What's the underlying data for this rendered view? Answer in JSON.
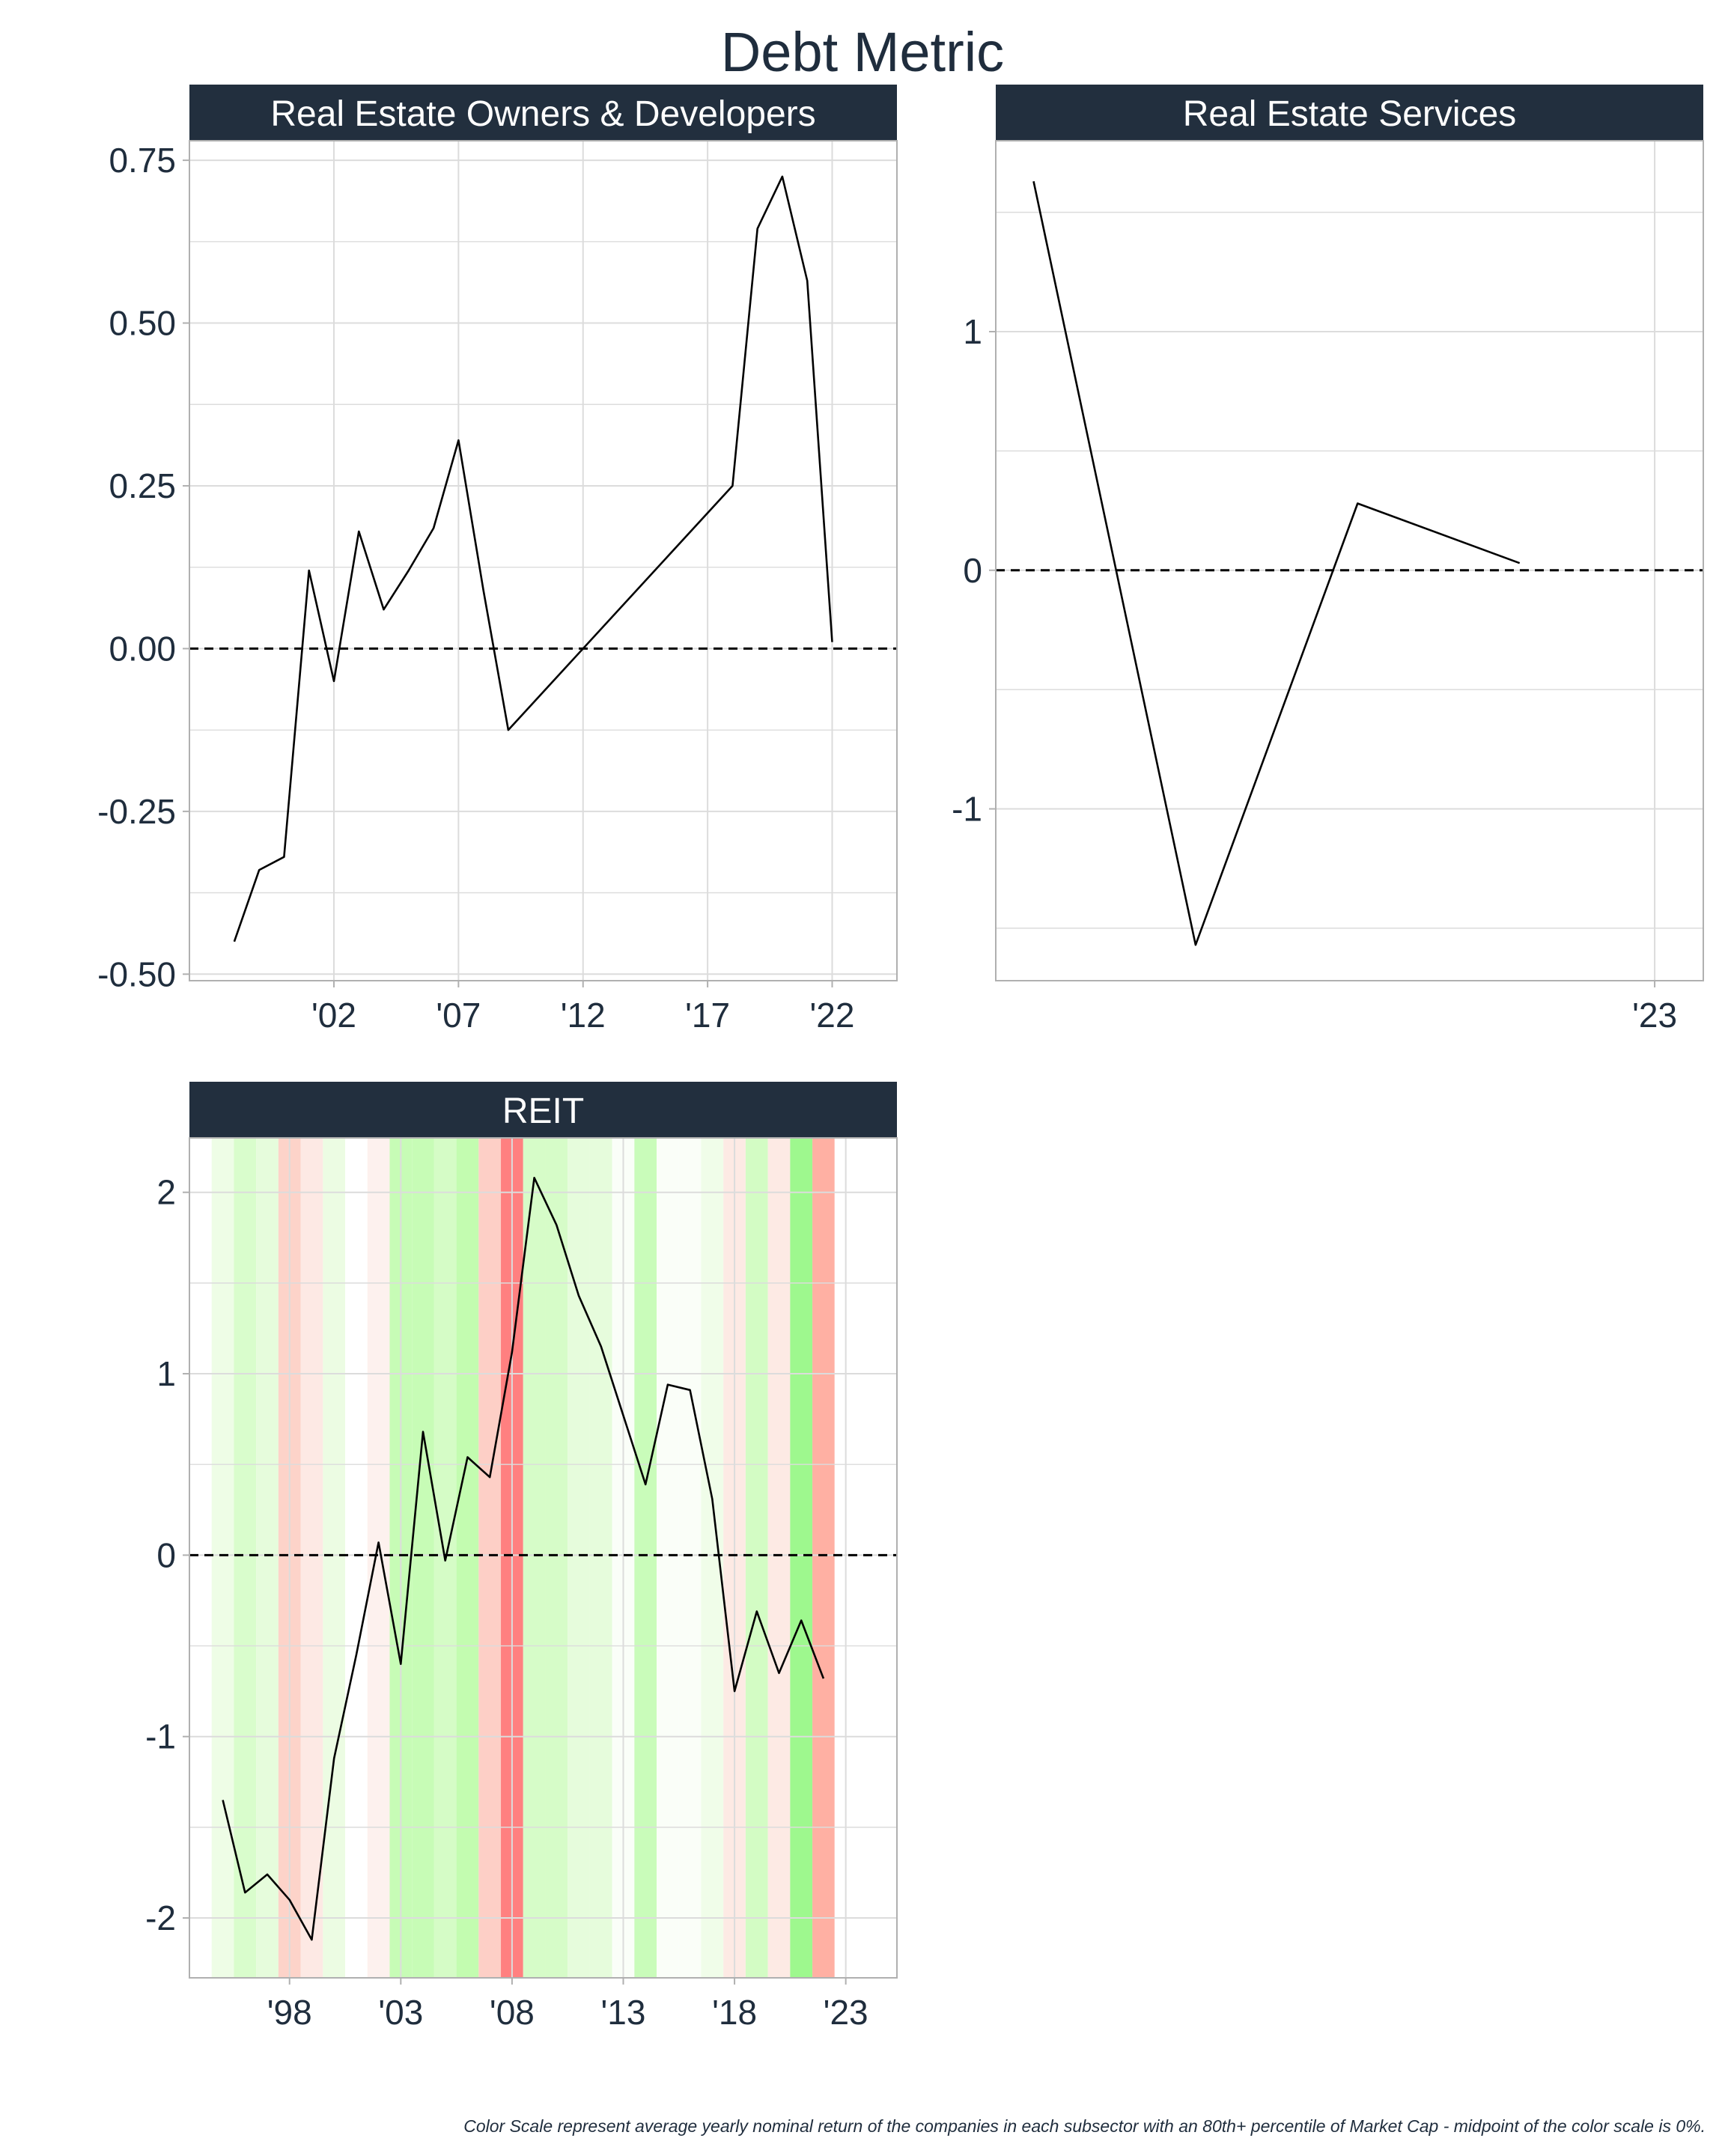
{
  "title": "Debt Metric",
  "caption": "Color Scale represent average yearly nominal return of the companies in each subsector with an 80th+ percentile of Market Cap - midpoint of the color scale is 0%.",
  "colors": {
    "strip": "#222f3e",
    "grid": "#dcdcdc",
    "line": "#000000",
    "zero_line": "#000000",
    "frame": "#b0b0b0"
  },
  "chart_data": [
    {
      "type": "line",
      "title": "Real Estate Owners & Developers",
      "xlim": [
        1996.2,
        2024.6
      ],
      "ylim": [
        -0.51,
        0.78
      ],
      "x_ticks": [
        2002,
        2007,
        2012,
        2017,
        2022
      ],
      "x_tick_labels": [
        "'02",
        "'07",
        "'12",
        "'17",
        "'22"
      ],
      "y_ticks": [
        -0.5,
        -0.25,
        0,
        0.25,
        0.5,
        0.75
      ],
      "y_tick_labels": [
        "-0.50",
        "-0.25",
        "0.00",
        "0.25",
        "0.50",
        "0.75"
      ],
      "reference_line": 0,
      "x": [
        1998,
        1999,
        2000,
        2001,
        2002,
        2003,
        2004,
        2005,
        2006,
        2007,
        2008,
        2009,
        2018,
        2019,
        2020,
        2021,
        2022
      ],
      "values": [
        -0.45,
        -0.34,
        -0.32,
        0.12,
        -0.05,
        0.18,
        0.06,
        0.12,
        0.185,
        0.32,
        0.09,
        -0.125,
        0.25,
        0.645,
        0.725,
        0.565,
        0.01
      ]
    },
    {
      "type": "line",
      "title": "Real Estate Services",
      "xlim": [
        1998.6,
        2024.8
      ],
      "ylim": [
        -1.72,
        1.8
      ],
      "x_ticks": [
        2023
      ],
      "x_tick_labels": [
        "'23"
      ],
      "y_ticks": [
        -1,
        0,
        1
      ],
      "y_tick_labels": [
        "-1",
        "0",
        "1"
      ],
      "reference_line": 0,
      "x": [
        2000,
        2006,
        2012,
        2018
      ],
      "values": [
        1.63,
        -1.57,
        0.28,
        0.03
      ]
    },
    {
      "type": "line",
      "title": "REIT",
      "xlim": [
        1993.5,
        2025.3
      ],
      "ylim": [
        -2.33,
        2.3
      ],
      "x_ticks": [
        1998,
        2003,
        2008,
        2013,
        2018,
        2023
      ],
      "x_tick_labels": [
        "'98",
        "'03",
        "'08",
        "'13",
        "'18",
        "'23"
      ],
      "y_ticks": [
        -2,
        -1,
        0,
        1,
        2
      ],
      "y_tick_labels": [
        "-2",
        "-1",
        "0",
        "1",
        "2"
      ],
      "reference_line": 0,
      "x": [
        1995,
        1996,
        1997,
        1998,
        1999,
        2000,
        2001,
        2002,
        2003,
        2004,
        2005,
        2006,
        2007,
        2008,
        2009,
        2010,
        2011,
        2012,
        2013,
        2014,
        2015,
        2016,
        2017,
        2018,
        2019,
        2020,
        2021,
        2022
      ],
      "values": [
        -1.35,
        -1.86,
        -1.76,
        -1.9,
        -2.12,
        -1.12,
        -0.55,
        0.07,
        -0.6,
        0.68,
        -0.03,
        0.54,
        0.43,
        1.12,
        2.08,
        1.82,
        1.43,
        1.15,
        0.77,
        0.39,
        0.94,
        0.91,
        0.31,
        -0.75,
        -0.31,
        -0.65,
        -0.36,
        -0.68
      ],
      "background_years": [
        1995,
        1996,
        1997,
        1998,
        1999,
        2000,
        2001,
        2002,
        2003,
        2004,
        2005,
        2006,
        2007,
        2008,
        2009,
        2010,
        2011,
        2012,
        2013,
        2014,
        2015,
        2016,
        2017,
        2018,
        2019,
        2020,
        2021,
        2022,
        2023
      ],
      "background_colors": [
        "#eefde6",
        "#d9fdcc",
        "#e6fcdc",
        "#fdd3c9",
        "#fde9e4",
        "#ecfce3",
        "#ffffff",
        "#fdf1ee",
        "#c7fcb6",
        "#c7fcb6",
        "#d5fcc6",
        "#c3fcb0",
        "#fdcfc6",
        "#ff8080",
        "#d6fcc8",
        "#d6fcc8",
        "#e6fcdc",
        "#e6fcdc",
        "#fafef8",
        "#c9fcba",
        "#fafef8",
        "#fafef8",
        "#f0fde9",
        "#fdeae4",
        "#d3fcc4",
        "#fdeae4",
        "#9ef88e",
        "#ffb0a3",
        "#ffffff"
      ]
    }
  ]
}
